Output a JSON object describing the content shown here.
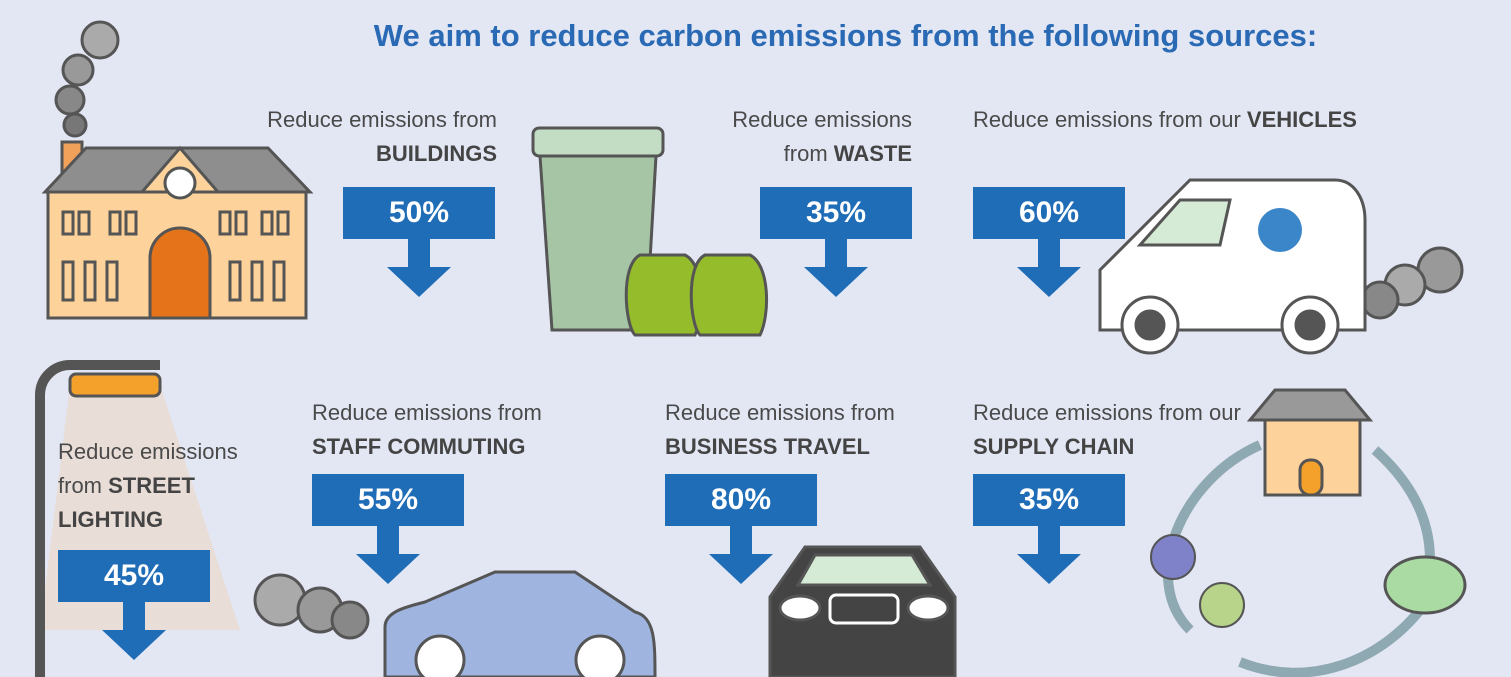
{
  "header": {
    "title": "We aim to reduce carbon emissions from the following sources:"
  },
  "items": [
    {
      "text": "Reduce emissions from",
      "bold": "BUILDINGS",
      "label": "50%"
    },
    {
      "text": "Reduce emissions from",
      "bold": "WASTE",
      "label": "35%"
    },
    {
      "text": "Reduce emissions from our",
      "bold": "VEHICLES",
      "label": "60%"
    },
    {
      "text": "Reduce emissions from",
      "bold": "STREET LIGHTING",
      "label": "45%"
    },
    {
      "text": "Reduce emissions from",
      "bold": "STAFF COMMUTING",
      "label": "55%"
    },
    {
      "text": "Reduce emissions from",
      "bold": "BUSINESS TRAVEL",
      "label": "80%"
    },
    {
      "text": "Reduce emissions from our",
      "bold": "SUPPLY CHAIN",
      "label": "35%"
    }
  ]
}
